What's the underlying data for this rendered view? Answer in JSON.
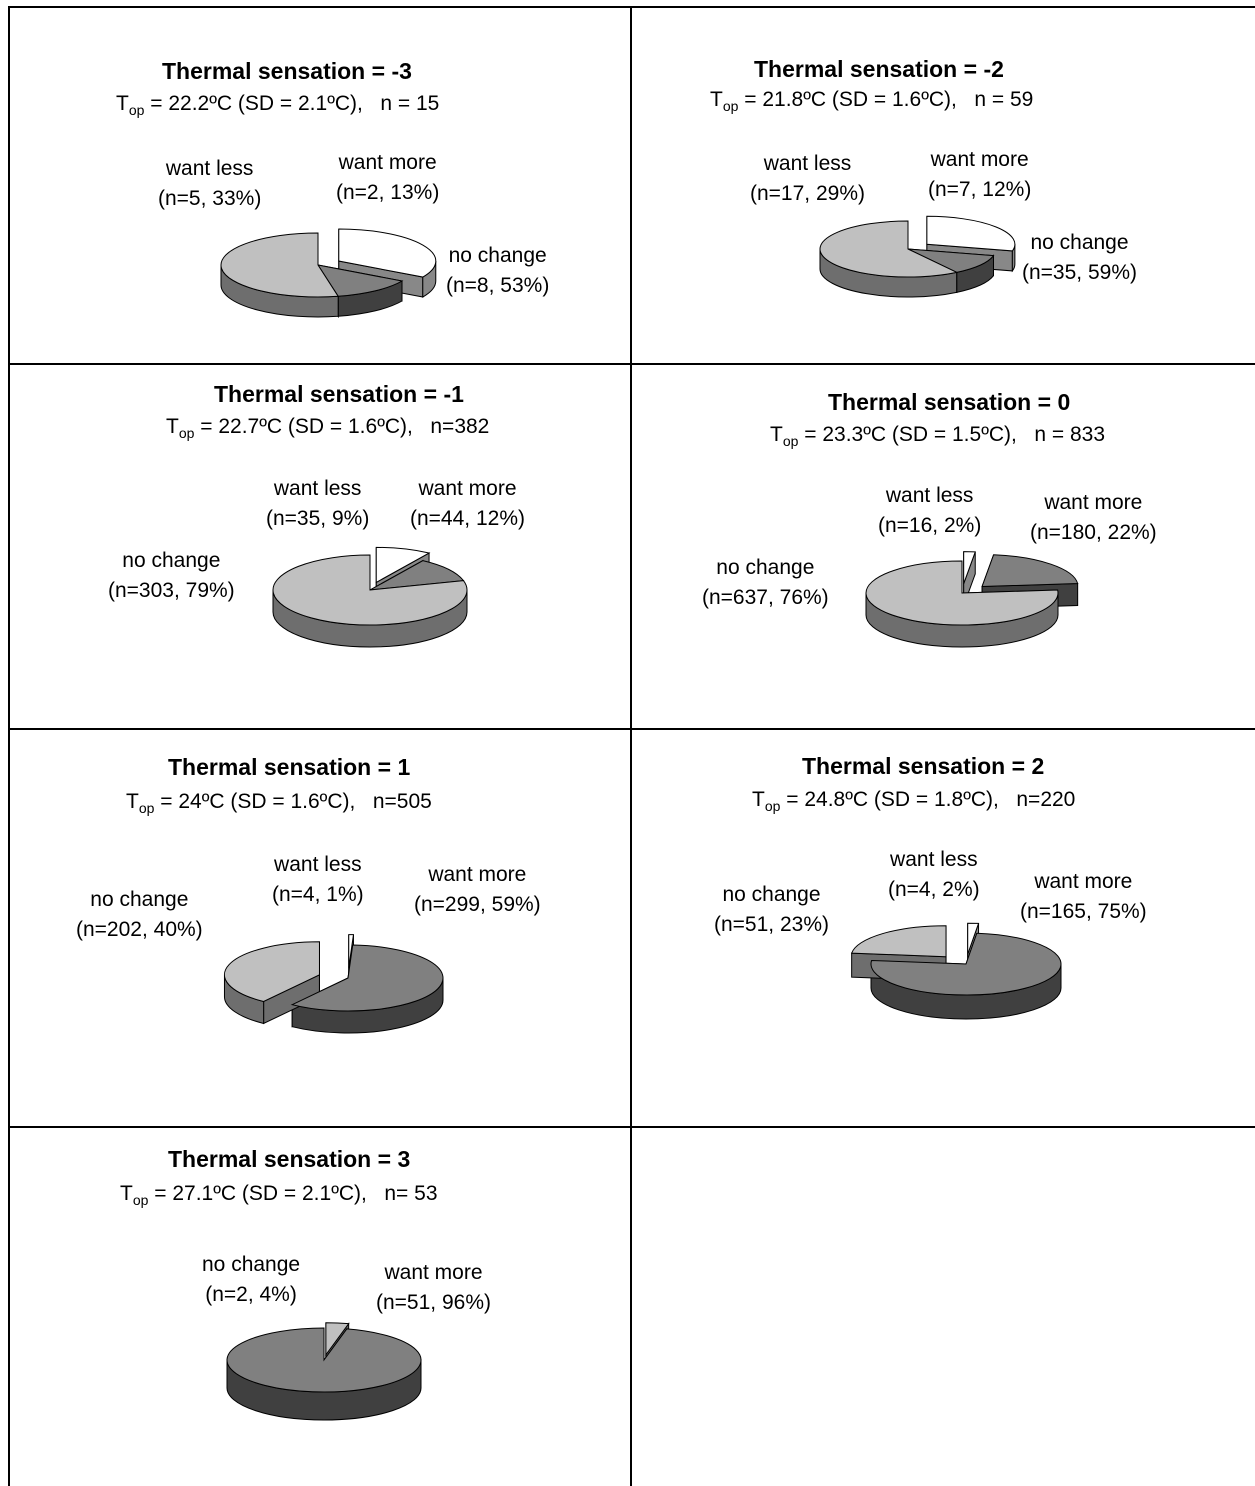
{
  "chart_data": [
    {
      "type": "pie",
      "title": "Thermal sensation = -3",
      "t_op": "22.2ºC",
      "sd": "2.1ºC",
      "n": "15",
      "n_text": "n = 15",
      "slices": [
        {
          "name": "want less",
          "label": "want less",
          "detail": "(n=5, 33%)",
          "count": 5,
          "percent": 33,
          "color": "#ffffff",
          "side": "#888888",
          "exploded": true
        },
        {
          "name": "want more",
          "label": "want more",
          "detail": "(n=2, 13%)",
          "count": 2,
          "percent": 13,
          "color": "#808080",
          "side": "#404040",
          "exploded": false
        },
        {
          "name": "no change",
          "label": "no change",
          "detail": "(n=8, 53%)",
          "count": 8,
          "percent": 53,
          "color": "#c0c0c0",
          "side": "#6e6e6e",
          "exploded": false
        }
      ]
    },
    {
      "type": "pie",
      "title": "Thermal sensation = -2",
      "t_op": "21.8ºC",
      "sd": "1.6ºC",
      "n": "59",
      "n_text": "n = 59",
      "slices": [
        {
          "name": "want less",
          "label": "want less",
          "detail": "(n=17, 29%)",
          "count": 17,
          "percent": 29,
          "color": "#ffffff",
          "side": "#888888",
          "exploded": true
        },
        {
          "name": "want more",
          "label": "want more",
          "detail": "(n=7, 12%)",
          "count": 7,
          "percent": 12,
          "color": "#808080",
          "side": "#404040",
          "exploded": false
        },
        {
          "name": "no change",
          "label": "no change",
          "detail": "(n=35, 59%)",
          "count": 35,
          "percent": 59,
          "color": "#c0c0c0",
          "side": "#6e6e6e",
          "exploded": false
        }
      ]
    },
    {
      "type": "pie",
      "title": "Thermal sensation = -1",
      "t_op": "22.7ºC",
      "sd": "1.6ºC",
      "n": "382",
      "n_text": "n=382",
      "slices": [
        {
          "name": "want less",
          "label": "want less",
          "detail": "(n=35, 9%)",
          "count": 35,
          "percent": 9,
          "color": "#ffffff",
          "side": "#888888",
          "exploded": true
        },
        {
          "name": "want more",
          "label": "want more",
          "detail": "(n=44, 12%)",
          "count": 44,
          "percent": 12,
          "color": "#808080",
          "side": "#404040",
          "exploded": false
        },
        {
          "name": "no change",
          "label": "no change",
          "detail": "(n=303, 79%)",
          "count": 303,
          "percent": 79,
          "color": "#c0c0c0",
          "side": "#6e6e6e",
          "exploded": false
        }
      ]
    },
    {
      "type": "pie",
      "title": "Thermal sensation = 0",
      "t_op": "23.3ºC",
      "sd": "1.5ºC",
      "n": "833",
      "n_text": "n = 833",
      "slices": [
        {
          "name": "want less",
          "label": "want less",
          "detail": "(n=16, 2%)",
          "count": 16,
          "percent": 2,
          "color": "#ffffff",
          "side": "#888888",
          "exploded": true
        },
        {
          "name": "want more",
          "label": "want more",
          "detail": "(n=180, 22%)",
          "count": 180,
          "percent": 22,
          "color": "#808080",
          "side": "#404040",
          "exploded": true
        },
        {
          "name": "no change",
          "label": "no change",
          "detail": "(n=637, 76%)",
          "count": 637,
          "percent": 76,
          "color": "#c0c0c0",
          "side": "#6e6e6e",
          "exploded": false
        }
      ]
    },
    {
      "type": "pie",
      "title": "Thermal sensation = 1",
      "t_op": "24ºC",
      "sd": "1.6ºC",
      "n": "505",
      "n_text": "n=505",
      "slices": [
        {
          "name": "want less",
          "label": "want less",
          "detail": "(n=4, 1%)",
          "count": 4,
          "percent": 1,
          "color": "#ffffff",
          "side": "#888888",
          "exploded": true
        },
        {
          "name": "want more",
          "label": "want more",
          "detail": "(n=299, 59%)",
          "count": 299,
          "percent": 59,
          "color": "#808080",
          "side": "#404040",
          "exploded": false
        },
        {
          "name": "no change",
          "label": "no change",
          "detail": "(n=202, 40%)",
          "count": 202,
          "percent": 40,
          "color": "#c0c0c0",
          "side": "#6e6e6e",
          "exploded": true
        }
      ]
    },
    {
      "type": "pie",
      "title": "Thermal sensation = 2",
      "t_op": "24.8ºC",
      "sd": "1.8ºC",
      "n": "220",
      "n_text": "n=220",
      "slices": [
        {
          "name": "want less",
          "label": "want less",
          "detail": "(n=4, 2%)",
          "count": 4,
          "percent": 2,
          "color": "#ffffff",
          "side": "#888888",
          "exploded": true
        },
        {
          "name": "want more",
          "label": "want more",
          "detail": "(n=165, 75%)",
          "count": 165,
          "percent": 75,
          "color": "#808080",
          "side": "#404040",
          "exploded": false
        },
        {
          "name": "no change",
          "label": "no change",
          "detail": "(n=51, 23%)",
          "count": 51,
          "percent": 23,
          "color": "#c0c0c0",
          "side": "#6e6e6e",
          "exploded": true
        }
      ]
    },
    {
      "type": "pie",
      "title": "Thermal sensation = 3",
      "t_op": "27.1ºC",
      "sd": "2.1ºC",
      "n": "53",
      "n_text": "n= 53",
      "slices": [
        {
          "name": "no change",
          "label": "no change",
          "detail": "(n=2, 4%)",
          "count": 2,
          "percent": 4,
          "color": "#c0c0c0",
          "side": "#6e6e6e",
          "exploded": true
        },
        {
          "name": "want more",
          "label": "want more",
          "detail": "(n=51, 96%)",
          "count": 51,
          "percent": 96,
          "color": "#808080",
          "side": "#404040",
          "exploded": false
        }
      ]
    }
  ]
}
